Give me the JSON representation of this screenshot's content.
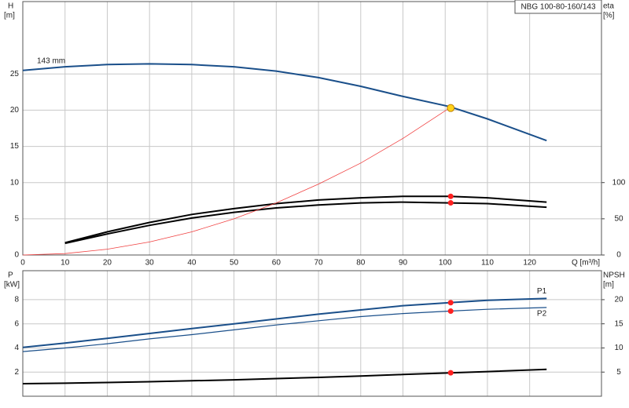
{
  "chart_data": [
    {
      "type": "line",
      "title": "NBG 100-80-160/143",
      "ylabel": "H",
      "yunit": "[m]",
      "y2label": "eta",
      "y2unit": "[%]",
      "xlabel": "Q [m³/h]",
      "x": [
        0,
        10,
        20,
        30,
        40,
        50,
        60,
        70,
        80,
        90,
        101,
        110,
        124
      ],
      "xlim": [
        0,
        137
      ],
      "xticks": [
        0,
        10,
        20,
        30,
        40,
        50,
        60,
        70,
        80,
        90,
        100,
        110,
        120
      ],
      "ylim": [
        0,
        35
      ],
      "yticks": [
        0,
        5,
        10,
        15,
        20,
        25
      ],
      "y2lim": [
        0,
        350
      ],
      "y2ticks": [
        0,
        50,
        100
      ],
      "grid": true,
      "series": [
        {
          "name": "143 mm",
          "color": "#1a4f8a",
          "values": [
            25.5,
            26.0,
            26.3,
            26.4,
            26.3,
            26.0,
            25.4,
            24.5,
            23.3,
            21.9,
            20.5,
            18.8,
            15.8
          ]
        },
        {
          "color": "#000000",
          "axis": "y2",
          "values": [
            null,
            17,
            32,
            45,
            56,
            64,
            71,
            76,
            79,
            81,
            81,
            79,
            73
          ]
        },
        {
          "color": "#000000",
          "axis": "y2",
          "values": [
            null,
            16,
            29,
            41,
            51,
            59,
            65,
            69,
            72,
            73,
            72,
            71,
            66
          ]
        },
        {
          "color": "#f04040",
          "values": [
            0,
            0.2,
            0.8,
            1.8,
            3.2,
            5.0,
            7.2,
            9.8,
            12.7,
            16.1,
            20.3,
            null,
            null
          ]
        }
      ],
      "points": [
        {
          "x": 101.3,
          "y": 20.3,
          "color": "#ffd21a"
        },
        {
          "x": 101.3,
          "y": 81,
          "color": "#ff2020",
          "axis": "y2"
        },
        {
          "x": 101.3,
          "y": 72,
          "color": "#ff2020",
          "axis": "y2"
        }
      ]
    },
    {
      "type": "line",
      "ylabel": "P",
      "yunit": "[kW]",
      "y2label": "NPSH",
      "y2unit": "[m]",
      "x": [
        0,
        10,
        20,
        30,
        40,
        50,
        60,
        70,
        80,
        90,
        101,
        110,
        124
      ],
      "xlim": [
        0,
        137
      ],
      "xticks": [
        0,
        10,
        20,
        30,
        40,
        50,
        60,
        70,
        80,
        90,
        100,
        110,
        120
      ],
      "ylim": [
        0,
        10.4
      ],
      "yticks": [
        2,
        4,
        6,
        8
      ],
      "y2lim": [
        0,
        26
      ],
      "y2ticks": [
        5,
        10,
        15,
        20
      ],
      "grid": true,
      "series": [
        {
          "name": "P1",
          "color": "#1a4f8a",
          "values": [
            4.05,
            4.4,
            4.8,
            5.2,
            5.6,
            6.0,
            6.4,
            6.8,
            7.15,
            7.5,
            7.75,
            7.95,
            8.1
          ]
        },
        {
          "name": "P2",
          "color": "#1a4f8a",
          "values": [
            3.7,
            4.0,
            4.35,
            4.75,
            5.1,
            5.5,
            5.9,
            6.25,
            6.6,
            6.85,
            7.05,
            7.2,
            7.35
          ]
        },
        {
          "color": "#000000",
          "axis": "y2",
          "values": [
            2.6,
            2.7,
            2.85,
            3.0,
            3.2,
            3.4,
            3.65,
            3.9,
            4.2,
            4.5,
            4.85,
            5.1,
            5.55
          ]
        }
      ],
      "points": [
        {
          "x": 101.3,
          "y": 7.75,
          "color": "#ff2020"
        },
        {
          "x": 101.3,
          "y": 7.05,
          "color": "#ff2020"
        },
        {
          "x": 101.3,
          "y": 4.85,
          "color": "#ff2020",
          "axis": "y2"
        }
      ]
    }
  ]
}
